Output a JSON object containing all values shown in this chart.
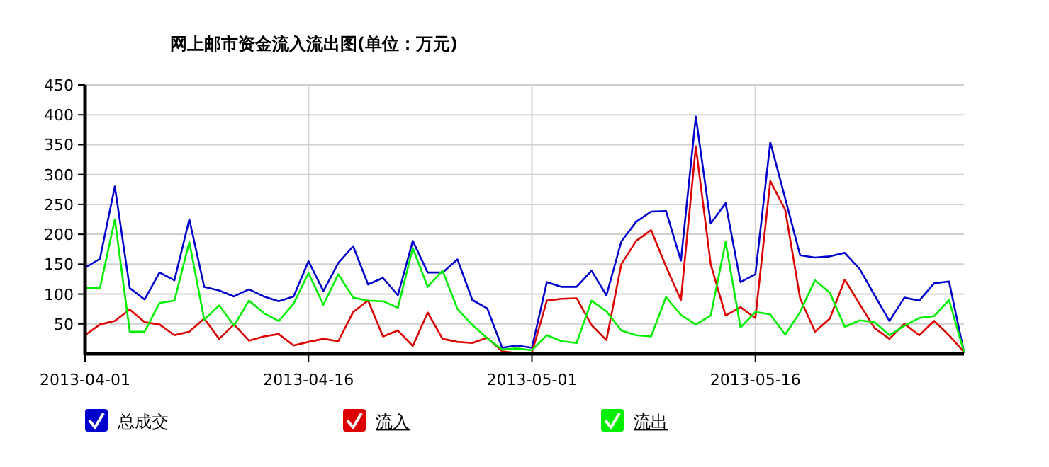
{
  "chart_data": {
    "type": "line",
    "title": "网上邮市资金流入流出图(单位：万元)",
    "x": [
      "2013-04-01",
      "2013-04-02",
      "2013-04-03",
      "2013-04-04",
      "2013-04-05",
      "2013-04-06",
      "2013-04-07",
      "2013-04-08",
      "2013-04-09",
      "2013-04-10",
      "2013-04-11",
      "2013-04-12",
      "2013-04-13",
      "2013-04-14",
      "2013-04-15",
      "2013-04-16",
      "2013-04-17",
      "2013-04-18",
      "2013-04-19",
      "2013-04-20",
      "2013-04-21",
      "2013-04-22",
      "2013-04-23",
      "2013-04-24",
      "2013-04-25",
      "2013-04-26",
      "2013-04-27",
      "2013-04-28",
      "2013-04-29",
      "2013-04-30",
      "2013-05-01",
      "2013-05-02",
      "2013-05-03",
      "2013-05-04",
      "2013-05-05",
      "2013-05-06",
      "2013-05-07",
      "2013-05-08",
      "2013-05-09",
      "2013-05-10",
      "2013-05-11",
      "2013-05-12",
      "2013-05-13",
      "2013-05-14",
      "2013-05-15",
      "2013-05-16",
      "2013-05-17",
      "2013-05-18",
      "2013-05-19",
      "2013-05-20",
      "2013-05-21",
      "2013-05-22",
      "2013-05-23",
      "2013-05-24",
      "2013-05-25",
      "2013-05-26",
      "2013-05-27",
      "2013-05-28",
      "2013-05-29",
      "2013-05-30"
    ],
    "series": [
      {
        "name": "总成交",
        "color": "#0000cc",
        "values": [
          144,
          159,
          280,
          110,
          91,
          136,
          123,
          225,
          112,
          106,
          96,
          108,
          96,
          88,
          96,
          155,
          105,
          152,
          180,
          116,
          127,
          98,
          189,
          136,
          136,
          158,
          90,
          76,
          10,
          14,
          10,
          120,
          112,
          112,
          139,
          98,
          188,
          221,
          238,
          239,
          156,
          397,
          218,
          252,
          120,
          133,
          354,
          260,
          165,
          161,
          163,
          169,
          142,
          98,
          55,
          94,
          89,
          118,
          121,
          3
        ]
      },
      {
        "name": "流入",
        "color": "#dd0000",
        "values": [
          31,
          49,
          55,
          74,
          53,
          49,
          31,
          37,
          59,
          25,
          49,
          22,
          29,
          33,
          14,
          20,
          25,
          21,
          70,
          89,
          29,
          39,
          13,
          69,
          25,
          20,
          18,
          27,
          4,
          1,
          2,
          89,
          92,
          93,
          48,
          23,
          150,
          189,
          207,
          146,
          90,
          347,
          150,
          64,
          78,
          60,
          289,
          241,
          93,
          37,
          59,
          124,
          83,
          43,
          25,
          50,
          31,
          55,
          31,
          3
        ]
      },
      {
        "name": "流出",
        "color": "#00ee00",
        "values": [
          110,
          110,
          225,
          37,
          37,
          85,
          89,
          187,
          57,
          81,
          47,
          89,
          68,
          55,
          84,
          135,
          82,
          133,
          94,
          89,
          88,
          77,
          177,
          112,
          139,
          75,
          48,
          26,
          7,
          9,
          6,
          31,
          21,
          18,
          89,
          71,
          39,
          31,
          29,
          95,
          65,
          49,
          64,
          187,
          44,
          70,
          66,
          32,
          70,
          123,
          102,
          45,
          56,
          53,
          31,
          47,
          60,
          63,
          90,
          3
        ]
      }
    ],
    "xlim": [
      "2013-04-01",
      "2013-05-30"
    ],
    "xticks": [
      "2013-04-01",
      "2013-04-16",
      "2013-05-01",
      "2013-05-16"
    ],
    "ylim": [
      0,
      450
    ],
    "yticks": [
      50,
      100,
      150,
      200,
      250,
      300,
      350,
      400,
      450
    ],
    "grid": true,
    "legend": "bottom left",
    "line_style": "solid"
  }
}
